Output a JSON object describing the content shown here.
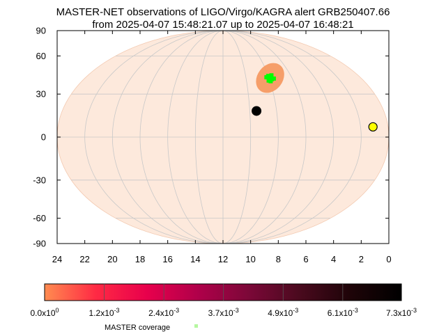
{
  "chart_data": {
    "type": "scatter",
    "projection": "mollweide",
    "title_line1": "MASTER-NET observations of LIGO/Virgo/KAGRA alert GRB250407.66",
    "title_line2": "from 2025-04-07 15:48:21.07 up to 2025-04-07 16:48:21",
    "x_axis": {
      "reversed": true,
      "range": [
        0,
        24
      ],
      "ticks": [
        24,
        22,
        20,
        18,
        16,
        14,
        12,
        10,
        8,
        6,
        4,
        2,
        0
      ],
      "tick_labels": [
        "24",
        "22",
        "20",
        "18",
        "16",
        "14",
        "12",
        "10",
        "8",
        "6",
        "4",
        "2",
        "0"
      ]
    },
    "y_axis": {
      "range": [
        -90,
        90
      ],
      "ticks": [
        90,
        60,
        30,
        0,
        -30,
        -60,
        -90
      ],
      "tick_labels": [
        "90",
        "60",
        "30",
        "0",
        "-30",
        "-60",
        "-90"
      ]
    },
    "grid": true,
    "sky_fill_color": "#fde9dc",
    "grid_color": "#c8c8c8",
    "localization_region": {
      "center": [
        7.9,
        42
      ],
      "half_width_hours": 1.1,
      "half_height_deg": 12,
      "tilt_deg": 38,
      "color": "#f59a62"
    },
    "master_coverage": {
      "points": [
        [
          7.9,
          42
        ],
        [
          7.7,
          44
        ],
        [
          8.1,
          40
        ],
        [
          7.8,
          41
        ],
        [
          8.0,
          43.5
        ],
        [
          7.6,
          41.5
        ],
        [
          8.2,
          42.5
        ],
        [
          7.95,
          39.5
        ]
      ],
      "color": "#00ff00"
    },
    "moon": {
      "ra": 9.5,
      "dec": 18,
      "color": "#000000"
    },
    "sun": {
      "ra": 1.1,
      "dec": 7,
      "color": "#ffff00"
    },
    "colorbar": {
      "min": 0,
      "max": 0.0073,
      "color_stops": [
        "#ff8c50",
        "#ff2a44",
        "#e8004c",
        "#b0004a",
        "#7c0838",
        "#4a0a1e",
        "#1e0408",
        "#000000"
      ],
      "divisions": [
        0,
        0.00122,
        0.00244,
        0.00366,
        0.00488,
        0.0061,
        0.0073
      ],
      "tick_labels": [
        {
          "mant": "0.0x10",
          "exp": "0"
        },
        {
          "mant": "1.2x10",
          "exp": "-3"
        },
        {
          "mant": "2.4x10",
          "exp": "-3"
        },
        {
          "mant": "3.7x10",
          "exp": "-3"
        },
        {
          "mant": "4.9x10",
          "exp": "-3"
        },
        {
          "mant": "6.1x10",
          "exp": "-3"
        },
        {
          "mant": "7.3x10",
          "exp": "-3"
        }
      ]
    },
    "legend": {
      "label": "MASTER coverage",
      "marker_color": "#b6f7a0"
    }
  }
}
